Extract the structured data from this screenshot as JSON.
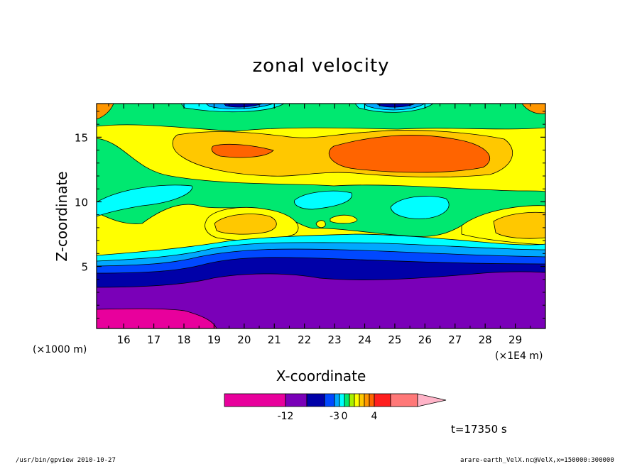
{
  "chart_data": {
    "type": "heatmap",
    "title": "zonal velocity",
    "xlabel": "X-coordinate",
    "ylabel": "Z-coordinate",
    "x_unit_left": "(×1000 m)",
    "x_unit_right": "(×1E4 m)",
    "x_ticks": [
      "16",
      "17",
      "18",
      "19",
      "20",
      "21",
      "22",
      "23",
      "24",
      "25",
      "26",
      "27",
      "28",
      "29"
    ],
    "y_ticks": [
      "5",
      "10",
      "15"
    ],
    "xlim": [
      15.1,
      30.0
    ],
    "ylim": [
      0.2,
      17.6
    ],
    "colorbar_labels": [
      "-12",
      "-3",
      "0",
      "4"
    ],
    "colorbar_colors": [
      "#e8009c",
      "#7a00b8",
      "#0000a8",
      "#0048ff",
      "#00a8ff",
      "#00ffff",
      "#00e870",
      "#a8f000",
      "#ffff00",
      "#ffc800",
      "#ff9600",
      "#ff6400",
      "#ff1e1e",
      "#ff7878",
      "#ffb4c8"
    ],
    "time_label": "t=17350 s",
    "grid": false
  },
  "footer": {
    "left": "/usr/bin/gpview   2010-10-27",
    "right": "arare-earth_VelX.nc@VelX,x=150000:300000"
  }
}
